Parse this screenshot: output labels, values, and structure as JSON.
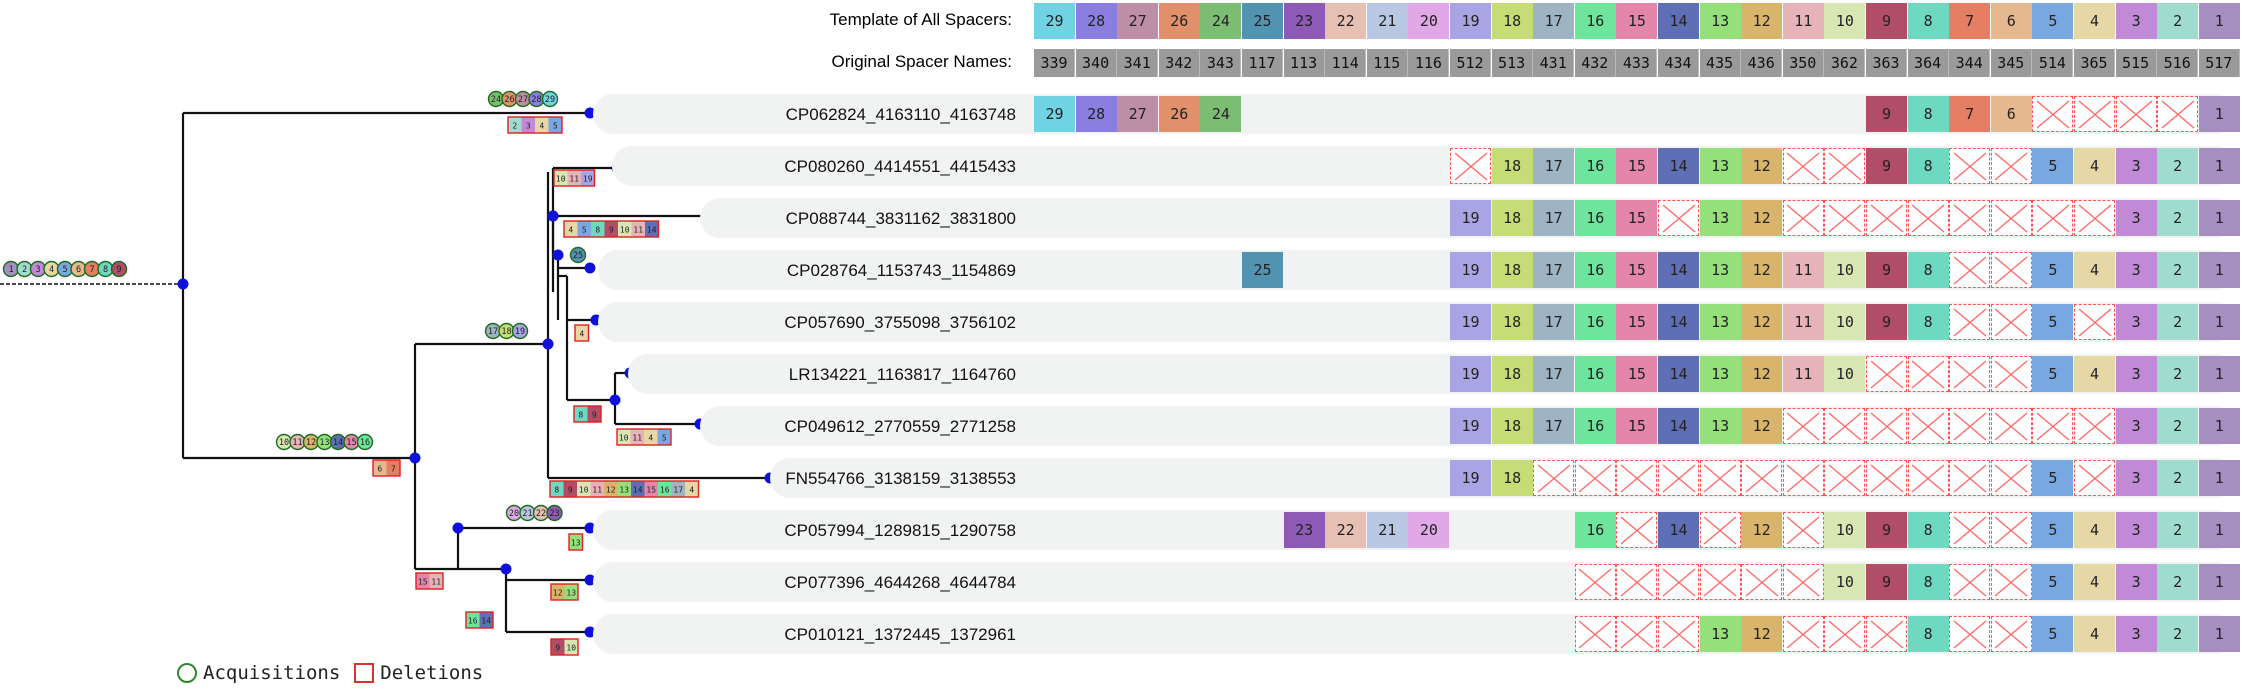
{
  "header": {
    "template_label": "Template of All Spacers:",
    "original_label": "Original Spacer Names:"
  },
  "template_spacers": [
    "29",
    "28",
    "27",
    "26",
    "24",
    "25",
    "23",
    "22",
    "21",
    "20",
    "19",
    "18",
    "17",
    "16",
    "15",
    "14",
    "13",
    "12",
    "11",
    "10",
    "9",
    "8",
    "7",
    "6",
    "5",
    "4",
    "3",
    "2",
    "1"
  ],
  "original_names": [
    "339",
    "340",
    "341",
    "342",
    "343",
    "117",
    "113",
    "114",
    "115",
    "116",
    "512",
    "513",
    "431",
    "432",
    "433",
    "434",
    "435",
    "436",
    "350",
    "362",
    "363",
    "364",
    "344",
    "345",
    "514",
    "365",
    "515",
    "516",
    "517"
  ],
  "spacer_colors": {
    "1": "#a58fc1",
    "2": "#9fdccd",
    "3": "#c18ad6",
    "4": "#e6d7a6",
    "5": "#79a7e0",
    "6": "#e6b88f",
    "7": "#e67e63",
    "8": "#6fd8c0",
    "9": "#b24d67",
    "10": "#d8e6b4",
    "11": "#e6b3b9",
    "12": "#d8b56b",
    "13": "#95e07a",
    "14": "#5e6fb6",
    "15": "#e486aa",
    "16": "#6ee59c",
    "17": "#9fb4c3",
    "18": "#c6dd76",
    "19": "#a9a4e4",
    "20": "#e0a8e6",
    "21": "#b9c7e2",
    "22": "#e6c0b3",
    "23": "#8d5bb5",
    "24": "#7bbd73",
    "25": "#5293b2",
    "26": "#e2906b",
    "27": "#bd8fa6",
    "28": "#8a7fe0",
    "29": "#6fd3e4"
  },
  "rows": [
    {
      "name": "CP062824_4163110_4163748",
      "cells": [
        "29",
        "28",
        "27",
        "26",
        "24",
        "",
        "",
        "",
        "",
        "",
        "",
        "",
        "",
        "",
        "",
        "",
        "",
        "",
        "",
        "",
        "9",
        "8",
        "7",
        "6",
        "x",
        "x",
        "x",
        "x",
        "1"
      ]
    },
    {
      "name": "CP080260_4414551_4415433",
      "cells": [
        "",
        "",
        "",
        "",
        "",
        "",
        "",
        "",
        "",
        "",
        "x",
        "18",
        "17",
        "16",
        "15",
        "14",
        "13",
        "12",
        "x",
        "x",
        "9",
        "8",
        "x",
        "x",
        "5",
        "4",
        "3",
        "2",
        "1"
      ]
    },
    {
      "name": "CP088744_3831162_3831800",
      "cells": [
        "",
        "",
        "",
        "",
        "",
        "",
        "",
        "",
        "",
        "",
        "19",
        "18",
        "17",
        "16",
        "15",
        "x",
        "13",
        "12",
        "x",
        "x",
        "x",
        "x",
        "x",
        "x",
        "x",
        "x",
        "3",
        "2",
        "1"
      ]
    },
    {
      "name": "CP028764_1153743_1154869",
      "cells": [
        "",
        "",
        "",
        "",
        "",
        "25",
        "",
        "",
        "",
        "",
        "19",
        "18",
        "17",
        "16",
        "15",
        "14",
        "13",
        "12",
        "11",
        "10",
        "9",
        "8",
        "x",
        "x",
        "5",
        "4",
        "3",
        "2",
        "1"
      ]
    },
    {
      "name": "CP057690_3755098_3756102",
      "cells": [
        "",
        "",
        "",
        "",
        "",
        "",
        "",
        "",
        "",
        "",
        "19",
        "18",
        "17",
        "16",
        "15",
        "14",
        "13",
        "12",
        "11",
        "10",
        "9",
        "8",
        "x",
        "x",
        "5",
        "x",
        "3",
        "2",
        "1"
      ]
    },
    {
      "name": "LR134221_1163817_1164760",
      "cells": [
        "",
        "",
        "",
        "",
        "",
        "",
        "",
        "",
        "",
        "",
        "19",
        "18",
        "17",
        "16",
        "15",
        "14",
        "13",
        "12",
        "11",
        "10",
        "x",
        "x",
        "x",
        "x",
        "5",
        "4",
        "3",
        "2",
        "1"
      ]
    },
    {
      "name": "CP049612_2770559_2771258",
      "cells": [
        "",
        "",
        "",
        "",
        "",
        "",
        "",
        "",
        "",
        "",
        "19",
        "18",
        "17",
        "16",
        "15",
        "14",
        "13",
        "12",
        "x",
        "x",
        "x",
        "x",
        "x",
        "x",
        "x",
        "x",
        "3",
        "2",
        "1"
      ]
    },
    {
      "name": "FN554766_3138159_3138553",
      "cells": [
        "",
        "",
        "",
        "",
        "",
        "",
        "",
        "",
        "",
        "",
        "19",
        "18",
        "x",
        "x",
        "x",
        "x",
        "x",
        "x",
        "x",
        "x",
        "x",
        "x",
        "x",
        "x",
        "5",
        "x",
        "3",
        "2",
        "1"
      ]
    },
    {
      "name": "CP057994_1289815_1290758",
      "cells": [
        "",
        "",
        "",
        "",
        "",
        "",
        "23",
        "22",
        "21",
        "20",
        "",
        "",
        "",
        "16",
        "x",
        "14",
        "x",
        "12",
        "x",
        "10",
        "9",
        "8",
        "x",
        "x",
        "5",
        "4",
        "3",
        "2",
        "1"
      ]
    },
    {
      "name": "CP077396_4644268_4644784",
      "cells": [
        "",
        "",
        "",
        "",
        "",
        "",
        "",
        "",
        "",
        "",
        "",
        "",
        "",
        "x",
        "x",
        "x",
        "x",
        "x",
        "x",
        "10",
        "9",
        "8",
        "x",
        "x",
        "5",
        "4",
        "3",
        "2",
        "1"
      ]
    },
    {
      "name": "CP010121_1372445_1372961",
      "cells": [
        "",
        "",
        "",
        "",
        "",
        "",
        "",
        "",
        "",
        "",
        "",
        "",
        "",
        "x",
        "x",
        "x",
        "13",
        "12",
        "x",
        "x",
        "x",
        "8",
        "x",
        "x",
        "5",
        "4",
        "3",
        "2",
        "1"
      ]
    }
  ],
  "tree_events": [
    {
      "type": "acq",
      "labels": [
        "24",
        "26",
        "27",
        "28",
        "29"
      ]
    },
    {
      "type": "del",
      "labels": [
        "2",
        "3",
        "4",
        "5"
      ]
    },
    {
      "type": "acq",
      "labels": [
        "1",
        "2",
        "3",
        "4",
        "5",
        "6",
        "7",
        "8",
        "9"
      ]
    },
    {
      "type": "del",
      "labels": [
        "10",
        "11",
        "19"
      ]
    },
    {
      "type": "del",
      "labels": [
        "4",
        "5",
        "8",
        "9",
        "10",
        "11",
        "14"
      ]
    },
    {
      "type": "acq",
      "labels": [
        "25"
      ]
    },
    {
      "type": "del",
      "labels": [
        "4"
      ]
    },
    {
      "type": "del",
      "labels": [
        "8",
        "9"
      ]
    },
    {
      "type": "del",
      "labels": [
        "10",
        "11",
        "4",
        "5"
      ]
    },
    {
      "type": "acq",
      "labels": [
        "17",
        "18",
        "19"
      ]
    },
    {
      "type": "acq",
      "labels": [
        "10",
        "11",
        "12",
        "13",
        "14",
        "15",
        "16"
      ]
    },
    {
      "type": "del",
      "labels": [
        "6",
        "7"
      ]
    },
    {
      "type": "del",
      "labels": [
        "8",
        "9",
        "10",
        "11",
        "12",
        "13",
        "14",
        "15",
        "16",
        "17",
        "4"
      ]
    },
    {
      "type": "acq",
      "labels": [
        "20",
        "21",
        "22",
        "23"
      ]
    },
    {
      "type": "del",
      "labels": [
        "13"
      ]
    },
    {
      "type": "del",
      "labels": [
        "15",
        "11"
      ]
    },
    {
      "type": "del",
      "labels": [
        "12",
        "13"
      ]
    },
    {
      "type": "del",
      "labels": [
        "16",
        "14"
      ]
    },
    {
      "type": "del",
      "labels": [
        "9",
        "10"
      ]
    }
  ],
  "legend": {
    "acquisitions": "Acquisitions",
    "deletions": "Deletions"
  }
}
